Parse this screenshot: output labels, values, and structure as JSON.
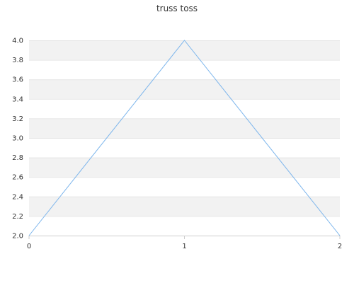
{
  "chart_data": {
    "type": "line",
    "title": "truss toss",
    "xlabel": "",
    "ylabel": "",
    "x": [
      0,
      1,
      2
    ],
    "xticks": [
      "0",
      "1",
      "2"
    ],
    "yticks": [
      "2.0",
      "2.2",
      "2.4",
      "2.6",
      "2.8",
      "3.0",
      "3.2",
      "3.4",
      "3.6",
      "3.8",
      "4.0"
    ],
    "xlim": [
      0,
      2
    ],
    "ylim": [
      2.0,
      4.0
    ],
    "series": [
      {
        "values": [
          2.0,
          4.0,
          2.0
        ],
        "color": "#7cb5ec"
      }
    ],
    "grid": true,
    "band_color": "#f2f2f2",
    "grid_color": "#e6e6e6",
    "axis_color": "#cccccc",
    "legend": "none"
  }
}
